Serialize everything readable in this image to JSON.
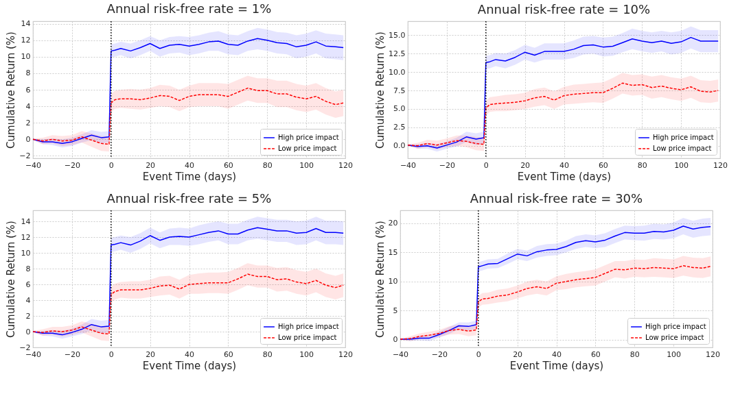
{
  "chart_data": [
    {
      "type": "line",
      "title": "Annual risk-free rate  =  1%",
      "xlabel": "Event Time (days)",
      "ylabel": "Cumulative Return (%)",
      "x": [
        -40,
        -35,
        -30,
        -25,
        -20,
        -15,
        -10,
        -5,
        -1,
        0,
        2,
        5,
        10,
        15,
        20,
        25,
        30,
        35,
        40,
        45,
        50,
        55,
        60,
        65,
        70,
        75,
        80,
        85,
        90,
        95,
        100,
        105,
        110,
        115,
        119
      ],
      "xlim": [
        -40,
        120
      ],
      "xticks": [
        -40,
        -20,
        0,
        20,
        40,
        60,
        80,
        100,
        120
      ],
      "ylim": [
        -2.3,
        14.3
      ],
      "yticks": [
        -2,
        0,
        2,
        4,
        6,
        8,
        10,
        12,
        14
      ],
      "grid": true,
      "legend": "bottom right",
      "marker": "none",
      "ref_lines": [
        {
          "axis": "x",
          "value": 0,
          "color": "#000000",
          "line_style": "dotted"
        }
      ],
      "series": [
        {
          "name": "High price impact",
          "color": "#0000ff",
          "line_style": "solid",
          "values": [
            0,
            -0.3,
            -0.3,
            -0.5,
            -0.3,
            0.1,
            0.5,
            0.2,
            0.3,
            10.7,
            10.8,
            11.0,
            10.7,
            11.1,
            11.6,
            11.0,
            11.4,
            11.5,
            11.3,
            11.5,
            11.8,
            11.9,
            11.5,
            11.4,
            11.9,
            12.2,
            12.0,
            11.7,
            11.6,
            11.2,
            11.4,
            11.8,
            11.3,
            11.2,
            11.1
          ],
          "lower": [
            -0.05,
            -0.6,
            -0.7,
            -1.0,
            -0.8,
            -0.4,
            -0.1,
            -0.5,
            -0.4,
            9.9,
            10.0,
            10.2,
            9.8,
            10.2,
            10.7,
            10.0,
            10.4,
            10.5,
            10.2,
            10.4,
            10.7,
            10.7,
            10.3,
            10.2,
            10.7,
            10.9,
            10.7,
            10.4,
            10.3,
            9.8,
            10.0,
            10.4,
            9.8,
            9.7,
            9.6
          ],
          "upper": [
            0.05,
            0.0,
            0.1,
            0.0,
            0.2,
            0.6,
            1.1,
            0.9,
            1.0,
            11.5,
            11.6,
            11.8,
            11.6,
            12.0,
            12.5,
            12.0,
            12.4,
            12.5,
            12.4,
            12.6,
            12.9,
            13.1,
            12.7,
            12.6,
            13.1,
            13.5,
            13.3,
            13.0,
            12.9,
            12.6,
            12.8,
            13.2,
            12.8,
            12.7,
            12.6
          ]
        },
        {
          "name": "Low price impact",
          "color": "#ff0000",
          "line_style": "dashed",
          "values": [
            0,
            -0.2,
            0.0,
            -0.2,
            -0.1,
            0.3,
            -0.1,
            -0.5,
            -0.6,
            4.4,
            4.8,
            4.9,
            4.9,
            4.8,
            5.0,
            5.3,
            5.2,
            4.7,
            5.2,
            5.4,
            5.4,
            5.4,
            5.2,
            5.7,
            6.2,
            5.9,
            5.9,
            5.5,
            5.5,
            5.1,
            4.9,
            5.2,
            4.6,
            4.2,
            4.4
          ],
          "lower": [
            -0.1,
            -0.6,
            -0.5,
            -0.8,
            -0.7,
            -0.4,
            -0.9,
            -1.4,
            -1.5,
            3.3,
            3.7,
            3.8,
            3.7,
            3.6,
            3.8,
            4.0,
            3.9,
            3.4,
            3.9,
            4.0,
            4.0,
            4.0,
            3.7,
            4.2,
            4.7,
            4.4,
            4.4,
            3.9,
            3.9,
            3.5,
            3.3,
            3.6,
            3.0,
            2.6,
            2.8
          ],
          "upper": [
            0.1,
            0.2,
            0.5,
            0.4,
            0.5,
            1.0,
            0.7,
            0.4,
            0.3,
            5.5,
            5.9,
            6.0,
            6.1,
            6.0,
            6.2,
            6.6,
            6.5,
            6.0,
            6.5,
            6.8,
            6.8,
            6.8,
            6.7,
            7.2,
            7.7,
            7.4,
            7.4,
            7.1,
            7.1,
            6.7,
            6.5,
            6.8,
            6.2,
            5.8,
            6.0
          ]
        }
      ]
    },
    {
      "type": "line",
      "title": "Annual risk-free rate  =  10%",
      "xlabel": "Event Time (days)",
      "ylabel": "Cumulative Return (%)",
      "x": [
        -40,
        -35,
        -30,
        -25,
        -20,
        -15,
        -10,
        -5,
        -1,
        0,
        2,
        5,
        10,
        15,
        20,
        25,
        30,
        35,
        40,
        45,
        50,
        55,
        60,
        65,
        70,
        75,
        80,
        85,
        90,
        95,
        100,
        105,
        110,
        115,
        119
      ],
      "xlim": [
        -40,
        120
      ],
      "xticks": [
        -40,
        -20,
        0,
        20,
        40,
        60,
        80,
        100,
        120
      ],
      "ylim": [
        -1.7,
        16.9
      ],
      "yticks": [
        {
          "value": 0,
          "label": "0.0"
        },
        2.5,
        {
          "value": 5,
          "label": "5.0"
        },
        7.5,
        {
          "value": 10,
          "label": "10.0"
        },
        12.5,
        {
          "value": 15,
          "label": "15.0"
        }
      ],
      "grid": true,
      "legend": "bottom right",
      "marker": "none",
      "ref_lines": [
        {
          "axis": "x",
          "value": 0,
          "color": "#000000",
          "line_style": "dotted"
        }
      ],
      "series": [
        {
          "name": "High price impact",
          "color": "#0000ff",
          "line_style": "solid",
          "values": [
            0.1,
            -0.1,
            0.0,
            -0.3,
            0.1,
            0.5,
            1.2,
            0.9,
            1.1,
            11.3,
            11.4,
            11.7,
            11.5,
            12.0,
            12.7,
            12.3,
            12.8,
            12.8,
            12.8,
            13.1,
            13.6,
            13.7,
            13.4,
            13.5,
            14.0,
            14.5,
            14.2,
            14.0,
            14.2,
            13.9,
            14.1,
            14.7,
            14.2,
            14.2,
            14.2
          ],
          "lower": [
            0.05,
            -0.4,
            -0.4,
            -0.8,
            -0.4,
            -0.1,
            0.5,
            0.1,
            0.3,
            10.4,
            10.5,
            10.8,
            10.5,
            11.0,
            11.7,
            11.3,
            11.7,
            11.7,
            11.7,
            11.9,
            12.4,
            12.5,
            12.1,
            12.2,
            12.7,
            13.1,
            12.8,
            12.6,
            12.8,
            12.4,
            12.6,
            13.2,
            12.7,
            12.7,
            12.7
          ],
          "upper": [
            0.15,
            0.2,
            0.4,
            0.2,
            0.6,
            1.1,
            1.9,
            1.7,
            1.9,
            12.2,
            12.3,
            12.6,
            12.5,
            13.0,
            13.7,
            13.3,
            13.9,
            13.9,
            13.9,
            14.3,
            14.8,
            14.9,
            14.7,
            14.8,
            15.3,
            15.9,
            15.6,
            15.4,
            15.6,
            15.4,
            15.6,
            16.2,
            15.7,
            15.7,
            15.7
          ]
        },
        {
          "name": "Low price impact",
          "color": "#ff0000",
          "line_style": "dashed",
          "values": [
            0.1,
            0.0,
            0.3,
            0.1,
            0.4,
            0.7,
            0.6,
            0.3,
            0.2,
            5.1,
            5.6,
            5.7,
            5.8,
            5.9,
            6.1,
            6.5,
            6.7,
            6.2,
            6.8,
            7.0,
            7.1,
            7.2,
            7.2,
            7.8,
            8.5,
            8.2,
            8.3,
            7.9,
            8.1,
            7.8,
            7.6,
            8.0,
            7.4,
            7.3,
            7.5
          ],
          "lower": [
            0.0,
            -0.4,
            -0.2,
            -0.5,
            -0.2,
            0.0,
            -0.2,
            -0.6,
            -0.7,
            4.1,
            4.6,
            4.7,
            4.7,
            4.8,
            5.0,
            5.3,
            5.5,
            5.0,
            5.6,
            5.7,
            5.8,
            5.9,
            5.8,
            6.4,
            7.1,
            6.8,
            6.9,
            6.4,
            6.6,
            6.3,
            6.1,
            6.5,
            5.9,
            5.8,
            6.0
          ],
          "upper": [
            0.2,
            0.4,
            0.8,
            0.7,
            1.0,
            1.4,
            1.4,
            1.2,
            1.1,
            6.1,
            6.6,
            6.7,
            6.9,
            7.0,
            7.2,
            7.7,
            7.9,
            7.4,
            8.0,
            8.3,
            8.4,
            8.5,
            8.6,
            9.2,
            9.9,
            9.6,
            9.7,
            9.4,
            9.6,
            9.3,
            9.1,
            9.5,
            8.9,
            8.8,
            9.0
          ]
        }
      ]
    },
    {
      "type": "line",
      "title": "Annual risk-free rate  =  5%",
      "xlabel": "Event Time (days)",
      "ylabel": "Cumulative Return (%)",
      "x": [
        -40,
        -35,
        -30,
        -25,
        -20,
        -15,
        -10,
        -5,
        -1,
        0,
        2,
        5,
        10,
        15,
        20,
        25,
        30,
        35,
        40,
        45,
        50,
        55,
        60,
        65,
        70,
        75,
        80,
        85,
        90,
        95,
        100,
        105,
        110,
        115,
        119
      ],
      "xlim": [
        -40,
        120
      ],
      "xticks": [
        -40,
        -20,
        0,
        20,
        40,
        60,
        80,
        100,
        120
      ],
      "ylim": [
        -2,
        15.4
      ],
      "yticks": [
        -2,
        0,
        2,
        4,
        6,
        8,
        10,
        12,
        14
      ],
      "grid": true,
      "legend": "bottom right",
      "marker": "none",
      "ref_lines": [
        {
          "axis": "x",
          "value": 0,
          "color": "#000000",
          "line_style": "dotted"
        }
      ],
      "series": [
        {
          "name": "High price impact",
          "color": "#0000ff",
          "line_style": "solid",
          "values": [
            0,
            -0.2,
            -0.2,
            -0.4,
            -0.1,
            0.3,
            0.9,
            0.6,
            0.7,
            11.0,
            11.1,
            11.3,
            11.0,
            11.5,
            12.2,
            11.6,
            12.0,
            12.1,
            12.0,
            12.3,
            12.6,
            12.8,
            12.4,
            12.4,
            12.9,
            13.2,
            13.0,
            12.8,
            12.8,
            12.5,
            12.6,
            13.1,
            12.6,
            12.6,
            12.5
          ],
          "lower": [
            -0.05,
            -0.5,
            -0.6,
            -0.9,
            -0.6,
            -0.3,
            0.2,
            -0.2,
            -0.1,
            10.1,
            10.2,
            10.4,
            10.0,
            10.5,
            11.2,
            10.6,
            11.0,
            11.0,
            10.9,
            11.1,
            11.4,
            11.6,
            11.1,
            11.1,
            11.6,
            11.8,
            11.6,
            11.4,
            11.4,
            11.0,
            11.1,
            11.6,
            11.1,
            11.1,
            11.0
          ],
          "upper": [
            0.05,
            0.1,
            0.2,
            0.1,
            0.4,
            0.9,
            1.6,
            1.4,
            1.5,
            11.9,
            12.0,
            12.2,
            12.0,
            12.5,
            13.2,
            12.6,
            13.1,
            13.2,
            13.1,
            13.5,
            13.8,
            14.0,
            13.7,
            13.7,
            14.2,
            14.6,
            14.4,
            14.2,
            14.2,
            14.0,
            14.1,
            14.6,
            14.1,
            14.1,
            14.0
          ]
        },
        {
          "name": "Low price impact",
          "color": "#ff0000",
          "line_style": "dashed",
          "values": [
            0,
            -0.1,
            0.1,
            0.0,
            0.2,
            0.6,
            0.2,
            -0.2,
            -0.3,
            4.7,
            5.1,
            5.3,
            5.3,
            5.3,
            5.5,
            5.8,
            5.9,
            5.4,
            6.0,
            6.1,
            6.2,
            6.2,
            6.2,
            6.7,
            7.3,
            7.0,
            7.0,
            6.6,
            6.7,
            6.3,
            6.1,
            6.5,
            5.9,
            5.6,
            5.9
          ],
          "lower": [
            -0.1,
            -0.5,
            -0.4,
            -0.6,
            -0.4,
            -0.1,
            -0.6,
            -1.1,
            -1.2,
            3.7,
            4.1,
            4.3,
            4.2,
            4.2,
            4.4,
            4.6,
            4.7,
            4.2,
            4.8,
            4.8,
            4.9,
            4.9,
            4.8,
            5.3,
            5.9,
            5.6,
            5.6,
            5.1,
            5.2,
            4.8,
            4.6,
            5.0,
            4.4,
            4.1,
            4.4
          ],
          "upper": [
            0.1,
            0.3,
            0.6,
            0.6,
            0.8,
            1.3,
            1.0,
            0.7,
            0.6,
            5.7,
            6.1,
            6.3,
            6.4,
            6.4,
            6.6,
            7.0,
            7.1,
            6.6,
            7.2,
            7.4,
            7.5,
            7.5,
            7.6,
            8.1,
            8.7,
            8.4,
            8.4,
            8.1,
            8.2,
            7.8,
            7.6,
            8.0,
            7.4,
            7.1,
            7.4
          ]
        }
      ]
    },
    {
      "type": "line",
      "title": "Annual risk-free rate  =  30%",
      "xlabel": "Event Time (days)",
      "ylabel": "Cumulative Return (%)",
      "x": [
        -40,
        -35,
        -30,
        -25,
        -20,
        -15,
        -10,
        -5,
        -1,
        0,
        2,
        5,
        10,
        15,
        20,
        25,
        30,
        35,
        40,
        45,
        50,
        55,
        60,
        65,
        70,
        75,
        80,
        85,
        90,
        95,
        100,
        105,
        110,
        115,
        119
      ],
      "xlim": [
        -40,
        120
      ],
      "xticks": [
        -40,
        -20,
        0,
        20,
        40,
        60,
        80,
        100,
        120
      ],
      "ylim": [
        -1.3,
        22.2
      ],
      "yticks": [
        0,
        5,
        10,
        15,
        20
      ],
      "grid": true,
      "legend": "bottom right",
      "marker": "none",
      "ref_lines": [
        {
          "axis": "x",
          "value": 0,
          "color": "#000000",
          "line_style": "dotted"
        }
      ],
      "series": [
        {
          "name": "High price impact",
          "color": "#0000ff",
          "line_style": "solid",
          "values": [
            0.1,
            0.1,
            0.3,
            0.3,
            0.9,
            1.6,
            2.4,
            2.3,
            2.6,
            12.5,
            12.7,
            13.0,
            13.1,
            13.9,
            14.7,
            14.4,
            15.1,
            15.4,
            15.5,
            16.0,
            16.7,
            17.0,
            16.8,
            17.1,
            17.8,
            18.4,
            18.3,
            18.3,
            18.6,
            18.5,
            18.8,
            19.5,
            19.0,
            19.3,
            19.4
          ],
          "lower": [
            0.05,
            -0.2,
            -0.1,
            -0.2,
            0.4,
            1.0,
            1.8,
            1.6,
            1.9,
            11.7,
            11.9,
            12.2,
            12.3,
            13.0,
            13.8,
            13.5,
            14.1,
            14.4,
            14.5,
            15.0,
            15.6,
            15.9,
            15.7,
            15.9,
            16.6,
            17.2,
            17.1,
            17.0,
            17.3,
            17.2,
            17.4,
            18.1,
            17.5,
            17.8,
            17.9
          ],
          "upper": [
            0.15,
            0.4,
            0.7,
            0.8,
            1.4,
            2.2,
            3.0,
            3.0,
            3.3,
            13.3,
            13.5,
            13.8,
            13.9,
            14.8,
            15.6,
            15.3,
            16.1,
            16.4,
            16.5,
            17.0,
            17.8,
            18.1,
            17.9,
            18.3,
            19.0,
            19.6,
            19.5,
            19.6,
            19.9,
            19.8,
            20.1,
            20.9,
            20.4,
            20.8,
            20.9
          ]
        },
        {
          "name": "Low price impact",
          "color": "#ff0000",
          "line_style": "dashed",
          "values": [
            0.1,
            0.2,
            0.6,
            0.8,
            1.1,
            1.6,
            1.8,
            1.5,
            1.7,
            6.5,
            7.0,
            7.1,
            7.5,
            7.7,
            8.2,
            8.8,
            9.1,
            8.8,
            9.7,
            10.0,
            10.3,
            10.5,
            10.7,
            11.4,
            12.1,
            12.0,
            12.3,
            12.2,
            12.4,
            12.3,
            12.2,
            12.7,
            12.4,
            12.3,
            12.6
          ],
          "lower": [
            0.0,
            -0.2,
            0.1,
            0.2,
            0.5,
            0.9,
            1.0,
            0.6,
            0.8,
            5.5,
            6.0,
            6.1,
            6.4,
            6.6,
            7.1,
            7.6,
            7.9,
            7.6,
            8.5,
            8.7,
            9.0,
            9.2,
            9.3,
            10.0,
            10.7,
            10.5,
            10.8,
            10.7,
            10.8,
            10.7,
            10.6,
            11.0,
            10.7,
            10.6,
            10.9
          ],
          "upper": [
            0.2,
            0.6,
            1.1,
            1.4,
            1.7,
            2.3,
            2.6,
            2.4,
            2.6,
            7.5,
            8.0,
            8.1,
            8.6,
            8.8,
            9.3,
            10.0,
            10.3,
            10.0,
            10.9,
            11.3,
            11.6,
            11.8,
            12.1,
            12.8,
            13.5,
            13.5,
            13.8,
            13.7,
            14.0,
            13.9,
            13.8,
            14.4,
            14.1,
            14.0,
            14.3
          ]
        }
      ]
    }
  ]
}
